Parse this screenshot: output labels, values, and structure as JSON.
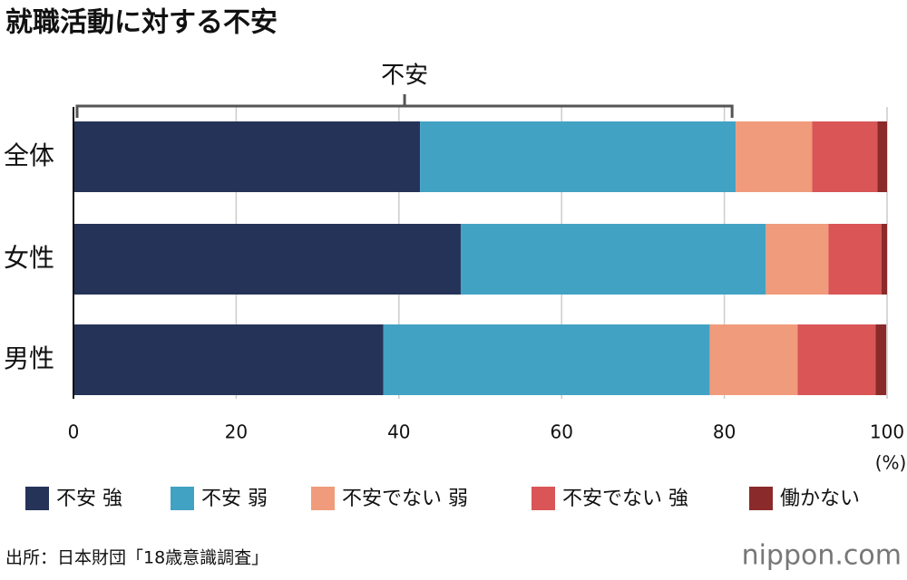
{
  "chart_data": {
    "type": "stacked-barh",
    "title": "就職活動に対する不安",
    "annotation": "不安",
    "categories": [
      "全体",
      "女性",
      "男性"
    ],
    "series": [
      {
        "name": "不安 強",
        "color": "#263359",
        "values": [
          42.6,
          47.6,
          38.1
        ]
      },
      {
        "name": "不安 弱",
        "color": "#42a2c4",
        "values": [
          38.8,
          37.5,
          40.1
        ]
      },
      {
        "name": "不安でない 弱",
        "color": "#f09b7b",
        "values": [
          9.4,
          7.7,
          10.8
        ]
      },
      {
        "name": "不安でない 強",
        "color": "#d95556",
        "values": [
          8.0,
          6.5,
          9.6
        ]
      },
      {
        "name": "働かない",
        "color": "#8b2a2a",
        "values": [
          1.2,
          0.7,
          1.3
        ]
      }
    ],
    "xlim": [
      0,
      100
    ],
    "xticks": [
      0,
      20,
      40,
      60,
      80,
      100
    ],
    "x_unit": "(%)",
    "grid": true,
    "source": "出所：日本財団「18歳意識調査」",
    "logo": "nippon.com"
  }
}
